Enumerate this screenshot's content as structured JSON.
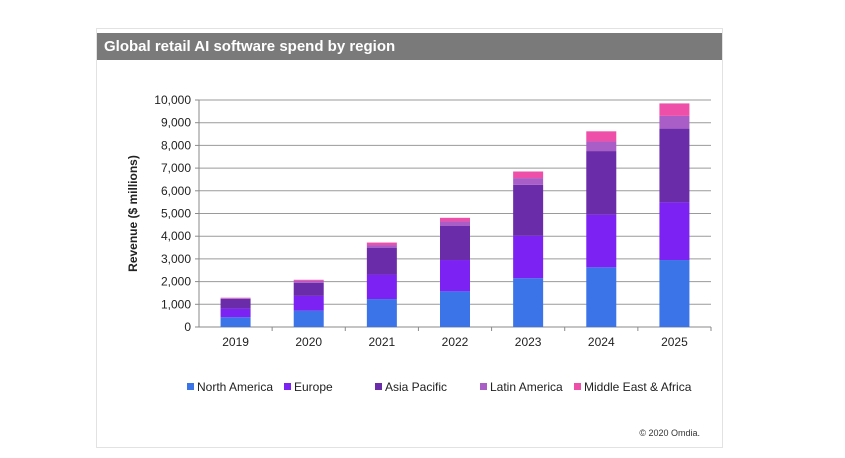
{
  "chart_data": {
    "type": "bar",
    "stacked": true,
    "title": "Global retail AI software spend by region",
    "xlabel": "",
    "ylabel": "Revenue ($ millions)",
    "ylim": [
      0,
      10000
    ],
    "yticks": [
      0,
      1000,
      2000,
      3000,
      4000,
      5000,
      6000,
      7000,
      8000,
      9000,
      10000
    ],
    "ytick_labels": [
      "0",
      "1,000",
      "2,000",
      "3,000",
      "4,000",
      "5,000",
      "6,000",
      "7,000",
      "8,000",
      "9,000",
      "10,000"
    ],
    "categories": [
      "2019",
      "2020",
      "2021",
      "2022",
      "2023",
      "2024",
      "2025"
    ],
    "grid": true,
    "legend_position": "bottom",
    "series": [
      {
        "name": "North America",
        "color": "#3b73e8",
        "values": [
          430,
          720,
          1230,
          1570,
          2150,
          2630,
          2950
        ]
      },
      {
        "name": "Europe",
        "color": "#7c22f2",
        "values": [
          380,
          650,
          1080,
          1380,
          1870,
          2320,
          2540
        ]
      },
      {
        "name": "Asia Pacific",
        "color": "#6a2ca8",
        "values": [
          430,
          580,
          1170,
          1500,
          2240,
          2800,
          3250
        ]
      },
      {
        "name": "Latin America",
        "color": "#a85ec6",
        "values": [
          30,
          80,
          130,
          200,
          300,
          420,
          560
        ]
      },
      {
        "name": "Middle East & Africa",
        "color": "#ee4fa9",
        "values": [
          20,
          50,
          110,
          160,
          290,
          450,
          550
        ]
      }
    ]
  },
  "credit": "© 2020 Omdia."
}
